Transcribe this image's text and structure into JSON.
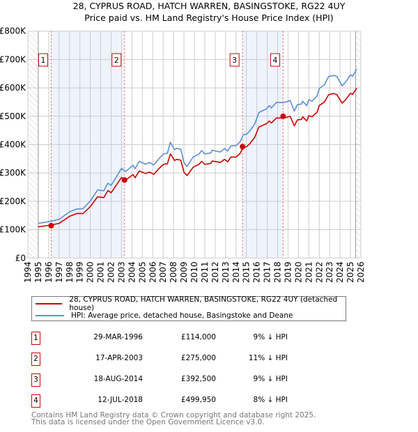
{
  "chart_data": {
    "type": "line",
    "title": "28, CYPRUS ROAD, HATCH WARREN, BASINGSTOKE, RG22 4UY",
    "subtitle": "Price paid vs. HM Land Registry's House Price Index (HPI)",
    "xlim": [
      1994,
      2026
    ],
    "ylim": [
      0,
      800000
    ],
    "y_ticks": [
      0,
      100000,
      200000,
      300000,
      400000,
      500000,
      600000,
      700000,
      800000
    ],
    "y_tick_labels": [
      "£0",
      "£100K",
      "£200K",
      "£300K",
      "£400K",
      "£500K",
      "£600K",
      "£700K",
      "£800K"
    ],
    "x_ticks": [
      "1994",
      "1995",
      "1996",
      "1997",
      "1998",
      "1999",
      "2000",
      "2001",
      "2002",
      "2003",
      "2004",
      "2005",
      "2006",
      "2007",
      "2008",
      "2009",
      "2010",
      "2011",
      "2012",
      "2013",
      "2014",
      "2015",
      "2016",
      "2017",
      "2018",
      "2019",
      "2020",
      "2021",
      "2022",
      "2023",
      "2024",
      "2025",
      "2026"
    ],
    "data_start": 1995.0,
    "data_end": 2025.5,
    "grid": true,
    "legend_placement": "below",
    "x": [
      1995.0,
      1996.0,
      1997.0,
      1998.0,
      1998.7,
      1999.3,
      2000.0,
      2000.7,
      2001.3,
      2001.7,
      2002.0,
      2003.0,
      2003.4,
      2004.1,
      2004.3,
      2004.7,
      2005.3,
      2005.7,
      2006.1,
      2006.8,
      2007.1,
      2007.4,
      2007.7,
      2008.1,
      2008.3,
      2008.7,
      2009.0,
      2009.3,
      2009.9,
      2010.4,
      2010.7,
      2011.0,
      2011.6,
      2011.7,
      2012.5,
      2012.9,
      2013.2,
      2013.5,
      2014.0,
      2014.4,
      2014.7,
      2015.0,
      2015.3,
      2015.8,
      2016.2,
      2016.7,
      2016.9,
      2017.2,
      2017.4,
      2017.9,
      2018.6,
      2018.9,
      2019.2,
      2019.6,
      2019.9,
      2020.3,
      2020.4,
      2020.8,
      2021.0,
      2021.3,
      2021.8,
      2022.0,
      2022.5,
      2022.9,
      2023.4,
      2023.7,
      2024.2,
      2024.5,
      2025.0,
      2025.2,
      2025.6
    ],
    "series": [
      {
        "name": "28, CYPRUS ROAD, HATCH WARREN, BASINGSTOKE, RG22 4UY (detached house)",
        "color": "#cc0000",
        "values": [
          110000,
          115000,
          122000,
          147000,
          157000,
          157000,
          181000,
          216000,
          213000,
          238000,
          230000,
          284000,
          275000,
          294000,
          283000,
          307000,
          298000,
          303000,
          295000,
          323000,
          331000,
          332000,
          367000,
          344000,
          348000,
          345000,
          302000,
          291000,
          321000,
          329000,
          341000,
          330000,
          334000,
          342000,
          337000,
          348000,
          339000,
          356000,
          356000,
          369000,
          392000,
          392000,
          402000,
          425000,
          462000,
          470000,
          473000,
          483000,
          476000,
          494000,
          493000,
          496000,
          500000,
          466000,
          487000,
          489000,
          498000,
          483000,
          502000,
          498000,
          515000,
          538000,
          550000,
          576000,
          580000,
          576000,
          546000,
          557000,
          581000,
          577000,
          599000
        ]
      },
      {
        "name": "HPI: Average price, detached house, Basingstoke and Deane",
        "color": "#5b8fd4",
        "values": [
          122000,
          128000,
          136000,
          163000,
          173000,
          174000,
          201000,
          240000,
          237000,
          264000,
          256000,
          316000,
          305000,
          327000,
          315000,
          341000,
          331000,
          337000,
          328000,
          359000,
          368000,
          369000,
          408000,
          382000,
          387000,
          383000,
          336000,
          323000,
          357000,
          365000,
          379000,
          367000,
          371000,
          380000,
          374000,
          386000,
          377000,
          395000,
          396000,
          410000,
          435000,
          436000,
          447000,
          472000,
          513000,
          522000,
          525000,
          537000,
          529000,
          549000,
          548000,
          551000,
          556000,
          518000,
          541000,
          543000,
          553000,
          537000,
          558000,
          553000,
          572000,
          598000,
          611000,
          640000,
          644000,
          640000,
          607000,
          619000,
          646000,
          641000,
          666000
        ]
      }
    ],
    "sales": [
      {
        "label": "1",
        "year": 1996.24,
        "value": 114000,
        "date": "29-MAR-1996",
        "price": "£114,000",
        "hpi": "9% ↓ HPI"
      },
      {
        "label": "2",
        "year": 2003.29,
        "value": 275000,
        "date": "17-APR-2003",
        "price": "£275,000",
        "hpi": "11% ↓ HPI"
      },
      {
        "label": "3",
        "year": 2014.63,
        "value": 392500,
        "date": "18-AUG-2014",
        "price": "£392,500",
        "hpi": "9% ↓ HPI"
      },
      {
        "label": "4",
        "year": 2018.53,
        "value": 499950,
        "date": "12-JUL-2018",
        "price": "£499,950",
        "hpi": "8% ↓ HPI"
      }
    ]
  },
  "header": {
    "title": "28, CYPRUS ROAD, HATCH WARREN, BASINGSTOKE, RG22 4UY",
    "subtitle": "Price paid vs. HM Land Registry's House Price Index (HPI)"
  },
  "legend": {
    "property": "28, CYPRUS ROAD, HATCH WARREN, BASINGSTOKE, RG22 4UY (detached house)",
    "hpi": "HPI: Average price, detached house, Basingstoke and Deane"
  },
  "footer": {
    "line1": "Contains HM Land Registry data © Crown copyright and database right 2025.",
    "line2": "This data is licensed under the Open Government Licence v3.0."
  }
}
